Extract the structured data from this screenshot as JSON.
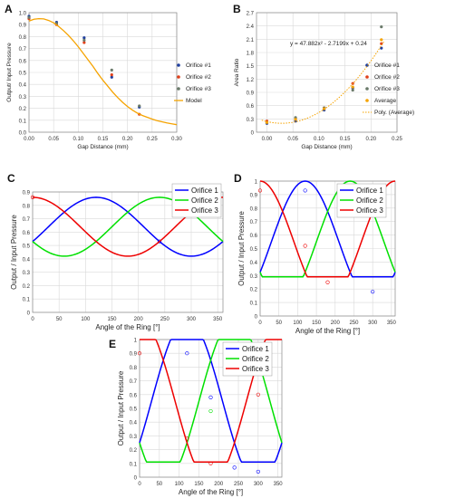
{
  "panels": {
    "A": {
      "letter": "A"
    },
    "B": {
      "letter": "B"
    },
    "C": {
      "letter": "C"
    },
    "D": {
      "letter": "D"
    },
    "E": {
      "letter": "E"
    }
  },
  "colors": {
    "orifice1": "#1f3f9f",
    "orifice2": "#e0401a",
    "orifice3": "#6a7a6a",
    "model": "#f5a300",
    "blue_line": "#0000ff",
    "green_line": "#00e000",
    "red_line": "#ee0000",
    "grid": "#d9d9d9"
  },
  "chart_data": [
    {
      "panel": "A",
      "type": "scatter",
      "xlabel": "Gap Distance (mm)",
      "ylabel": "Output/ Input Pressure",
      "xlim": [
        0,
        0.3
      ],
      "ylim": [
        0,
        1.0
      ],
      "xticks": [
        "0.00",
        "0.05",
        "0.10",
        "0.15",
        "0.20",
        "0.25",
        "0.30"
      ],
      "yticks": [
        "0.0",
        "0.1",
        "0.2",
        "0.3",
        "0.4",
        "0.5",
        "0.6",
        "0.7",
        "0.8",
        "0.9",
        "1.0"
      ],
      "grid": true,
      "legend_position": "right",
      "series": [
        {
          "name": "Orifice #1",
          "color": "#1f3f9f",
          "x": [
            0,
            0.056,
            0.112,
            0.168,
            0.224
          ],
          "y": [
            0.97,
            0.92,
            0.79,
            0.46,
            0.21
          ]
        },
        {
          "name": "Orifice #2",
          "color": "#e0401a",
          "x": [
            0,
            0.056,
            0.112,
            0.168,
            0.224
          ],
          "y": [
            0.95,
            0.9,
            0.75,
            0.48,
            0.15
          ]
        },
        {
          "name": "Orifice #3",
          "color": "#6a7a6a",
          "x": [
            0,
            0.056,
            0.112,
            0.168,
            0.224
          ],
          "y": [
            0.96,
            0.91,
            0.77,
            0.52,
            0.22
          ]
        },
        {
          "name": "Model",
          "color": "#f5a300",
          "type": "line",
          "x": [
            0,
            0.01,
            0.02,
            0.03,
            0.04,
            0.05,
            0.06,
            0.07,
            0.08,
            0.09,
            0.1,
            0.11,
            0.12,
            0.13,
            0.14,
            0.15,
            0.16,
            0.17,
            0.18,
            0.19,
            0.2,
            0.21,
            0.22,
            0.23,
            0.24,
            0.25,
            0.26,
            0.27,
            0.28,
            0.29,
            0.3
          ],
          "y": [
            0.93,
            0.945,
            0.95,
            0.948,
            0.935,
            0.915,
            0.885,
            0.85,
            0.81,
            0.765,
            0.715,
            0.66,
            0.605,
            0.55,
            0.49,
            0.435,
            0.385,
            0.335,
            0.29,
            0.25,
            0.215,
            0.185,
            0.16,
            0.14,
            0.125,
            0.11,
            0.097,
            0.087,
            0.078,
            0.07,
            0.063
          ]
        }
      ]
    },
    {
      "panel": "B",
      "type": "scatter",
      "xlabel": "Gap Distance (mm)",
      "ylabel": "Area Ratio",
      "xlim": [
        -0.02,
        0.25
      ],
      "ylim": [
        0,
        2.7
      ],
      "xticks": [
        "0.00",
        "0.05",
        "0.10",
        "0.15",
        "0.20",
        "0.25"
      ],
      "xtick_values": [
        0,
        0.05,
        0.1,
        0.15,
        0.2,
        0.25
      ],
      "yticks": [
        "0",
        "0.3",
        "0.6",
        "0.9",
        "1.2",
        "1.5",
        "1.8",
        "2.1",
        "2.4",
        "2.7"
      ],
      "grid": true,
      "legend_position": "right",
      "annotation": "y = 47.882x² - 2.7199x + 0.24",
      "series": [
        {
          "name": "Orifice #1",
          "color": "#1f3f9f",
          "x": [
            0,
            0.055,
            0.11,
            0.165,
            0.22
          ],
          "y": [
            0.2,
            0.25,
            0.5,
            1.0,
            1.9
          ]
        },
        {
          "name": "Orifice #2",
          "color": "#e0401a",
          "x": [
            0,
            0.055,
            0.11,
            0.165,
            0.22
          ],
          "y": [
            0.25,
            0.3,
            0.55,
            1.1,
            2.0
          ]
        },
        {
          "name": "Orifice #3",
          "color": "#6a7a6a",
          "x": [
            0,
            0.055,
            0.11,
            0.165,
            0.22
          ],
          "y": [
            0.22,
            0.33,
            0.55,
            0.95,
            2.38
          ]
        },
        {
          "name": "Average",
          "color": "#f5a300",
          "x": [
            0,
            0.055,
            0.11,
            0.165,
            0.22
          ],
          "y": [
            0.22,
            0.29,
            0.53,
            1.02,
            2.09
          ]
        },
        {
          "name": "Poly. (Average)",
          "color": "#f5a300",
          "type": "dotted-line",
          "coefficients": [
            47.882,
            -2.7199,
            0.24
          ],
          "x_range": [
            -0.01,
            0.225
          ]
        }
      ]
    },
    {
      "panel": "C",
      "type": "line",
      "xlabel": "Angle of the Ring [°]",
      "ylabel": "Output / Input Pressure",
      "xlim": [
        0,
        360
      ],
      "ylim": [
        0,
        0.9
      ],
      "xticks": [
        "0",
        "50",
        "100",
        "150",
        "200",
        "250",
        "300",
        "350"
      ],
      "yticks": [
        "0",
        "0.1",
        "0.2",
        "0.3",
        "0.4",
        "0.5",
        "0.6",
        "0.7",
        "0.8",
        "0.9"
      ],
      "grid": true,
      "legend_position": "top-right",
      "model": {
        "kind": "cosine",
        "min": 0.42,
        "max": 0.86
      },
      "series": [
        {
          "name": "Orifice 1",
          "color": "#0000ff",
          "peak_deg": 120,
          "points": {
            "x": [
              240
            ],
            "y": [
              0.53
            ]
          }
        },
        {
          "name": "Orifice 2",
          "color": "#00e000",
          "peak_deg": 240,
          "points": {
            "x": [],
            "y": []
          }
        },
        {
          "name": "Orifice 3",
          "color": "#ee0000",
          "peak_deg": 0,
          "points": {
            "x": [
              0
            ],
            "y": [
              0.86
            ]
          }
        }
      ]
    },
    {
      "panel": "D",
      "type": "line",
      "xlabel": "Angle of the Ring [°]",
      "ylabel": "Output / Input Pressure",
      "xlim": [
        0,
        360
      ],
      "ylim": [
        0,
        1
      ],
      "xticks": [
        "0",
        "50",
        "100",
        "150",
        "200",
        "250",
        "300",
        "350"
      ],
      "yticks": [
        "0",
        "0.1",
        "0.2",
        "0.3",
        "0.4",
        "0.5",
        "0.6",
        "0.7",
        "0.8",
        "0.9",
        "1"
      ],
      "grid": true,
      "legend_position": "top-right",
      "model": {
        "kind": "clipped-cosine",
        "min": 0.29,
        "max": 1.0,
        "amp": 0.45
      },
      "series": [
        {
          "name": "Orifice 1",
          "color": "#0000ff",
          "peak_deg": 120,
          "points": {
            "x": [
              120,
              300
            ],
            "y": [
              0.93,
              0.18
            ]
          }
        },
        {
          "name": "Orifice 2",
          "color": "#00e000",
          "peak_deg": 240,
          "points": {
            "x": [
              240
            ],
            "y": [
              0.93
            ]
          }
        },
        {
          "name": "Orifice 3",
          "color": "#ee0000",
          "peak_deg": 0,
          "points": {
            "x": [
              0,
              120,
              180
            ],
            "y": [
              0.93,
              0.52,
              0.25
            ]
          }
        }
      ]
    },
    {
      "panel": "E",
      "type": "line",
      "xlabel": "Angle of the Ring [°]",
      "ylabel": "Output / Input Pressure",
      "xlim": [
        0,
        360
      ],
      "ylim": [
        0,
        1
      ],
      "xticks": [
        "0",
        "50",
        "100",
        "150",
        "200",
        "250",
        "300",
        "350"
      ],
      "yticks": [
        "0",
        "0.1",
        "0.2",
        "0.3",
        "0.4",
        "0.5",
        "0.6",
        "0.7",
        "0.8",
        "0.9",
        "1"
      ],
      "grid": true,
      "legend_position": "top-right",
      "model": {
        "kind": "clipped-cosine",
        "min": 0.11,
        "max": 1.0,
        "amp": 0.6
      },
      "series": [
        {
          "name": "Orifice 1",
          "color": "#0000ff",
          "peak_deg": 120,
          "points": {
            "x": [
              120,
              180,
              240,
              300
            ],
            "y": [
              0.9,
              0.58,
              0.07,
              0.04
            ]
          }
        },
        {
          "name": "Orifice 2",
          "color": "#00e000",
          "peak_deg": 240,
          "points": {
            "x": [
              180,
              240
            ],
            "y": [
              0.48,
              0.9
            ]
          }
        },
        {
          "name": "Orifice 3",
          "color": "#ee0000",
          "peak_deg": 0,
          "points": {
            "x": [
              0,
              120,
              180,
              300
            ],
            "y": [
              0.9,
              0.28,
              0.1,
              0.6
            ]
          }
        }
      ]
    }
  ]
}
